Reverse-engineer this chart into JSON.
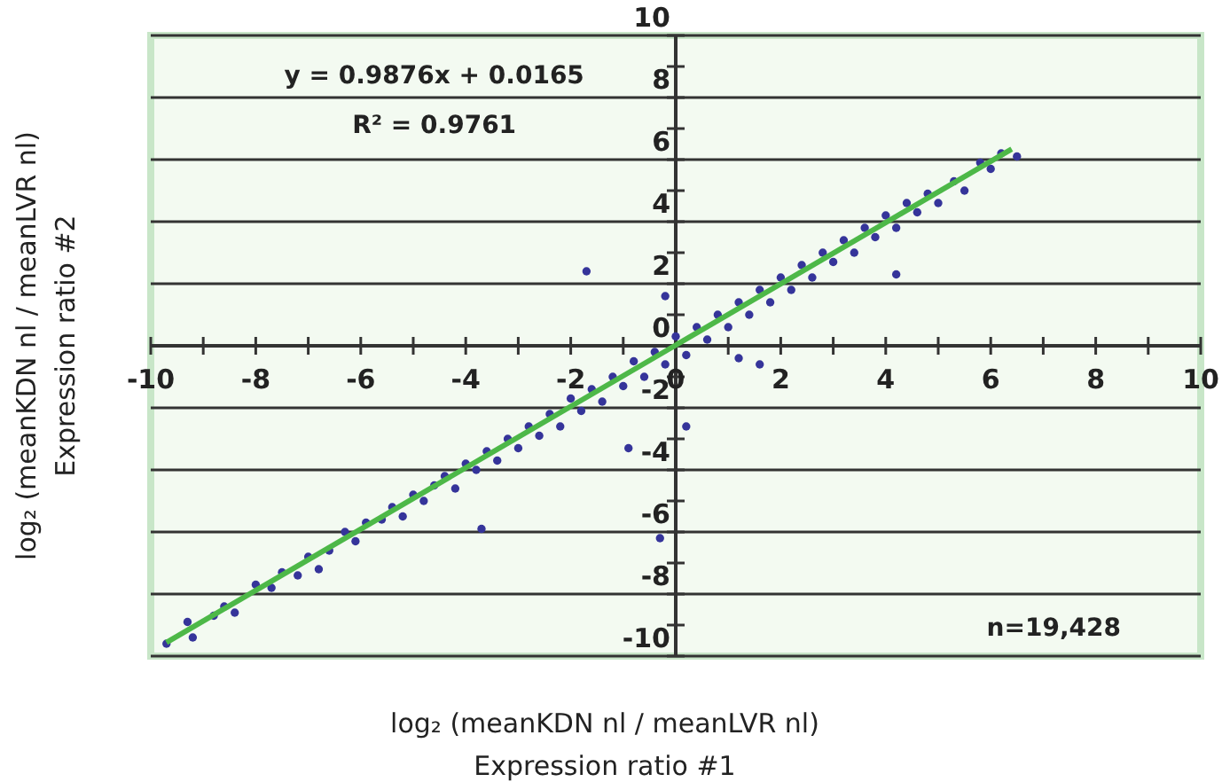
{
  "chart_data": {
    "type": "scatter",
    "xlabel": "log₂ (meanKDN nl / meanLVR nl)\nExpression ratio #1",
    "ylabel": "log₂ (meanKDN nl / meanLVR nl)\nExpression ratio #2",
    "annotations": [
      "y = 0.9876x + 0.0165",
      "R² = 0.9761",
      "n=19,428"
    ],
    "xlim": [
      -10,
      10
    ],
    "ylim": [
      -10,
      10
    ],
    "xticks": [
      -10,
      {
        "value": -9,
        "label": null
      },
      -8,
      {
        "value": -7,
        "label": null
      },
      -6,
      {
        "value": -5,
        "label": null
      },
      -4,
      {
        "value": -3,
        "label": null
      },
      -2,
      {
        "value": -1,
        "label": null
      },
      0,
      {
        "value": 1,
        "label": null
      },
      2,
      {
        "value": 3,
        "label": null
      },
      4,
      {
        "value": 5,
        "label": null
      },
      6,
      {
        "value": 7,
        "label": null
      },
      8,
      {
        "value": 9,
        "label": null
      },
      10
    ],
    "yticks": [
      -10,
      {
        "value": -9,
        "label": null
      },
      -8,
      {
        "value": -7,
        "label": null
      },
      -6,
      {
        "value": -5,
        "label": null
      },
      -4,
      {
        "value": -3,
        "label": null
      },
      -2,
      {
        "value": -1,
        "label": null
      },
      0,
      {
        "value": 1,
        "label": null
      },
      2,
      {
        "value": 3,
        "label": null
      },
      4,
      {
        "value": 5,
        "label": null
      },
      6,
      {
        "value": 7,
        "label": null
      },
      8,
      {
        "value": 9,
        "label": null
      },
      10
    ],
    "grid": "y",
    "series": [
      {
        "type": "scatter",
        "marker": "circle",
        "color": "#35349a",
        "x": [
          -9.7,
          -9.3,
          -9.2,
          -8.8,
          -8.6,
          -8.4,
          -8.0,
          -7.7,
          -7.5,
          -7.2,
          -7.0,
          -6.8,
          -6.6,
          -6.3,
          -6.1,
          -5.9,
          -5.6,
          -5.4,
          -5.2,
          -5.0,
          -4.8,
          -4.6,
          -4.4,
          -4.2,
          -4.0,
          -3.8,
          -3.6,
          -3.4,
          -3.2,
          -3.0,
          -2.8,
          -2.6,
          -2.4,
          -2.2,
          -2.0,
          -1.8,
          -1.6,
          -1.4,
          -1.2,
          -1.0,
          -0.8,
          -0.6,
          -0.4,
          -0.2,
          0.0,
          0.2,
          0.4,
          0.6,
          0.8,
          1.0,
          1.2,
          1.4,
          1.6,
          1.8,
          2.0,
          2.2,
          2.4,
          2.6,
          2.8,
          3.0,
          3.2,
          3.4,
          3.6,
          3.8,
          4.0,
          4.2,
          4.4,
          4.6,
          4.8,
          5.0,
          5.3,
          5.5,
          5.8,
          6.0,
          6.2,
          6.5,
          -1.7,
          -0.2,
          4.2,
          -3.7,
          -0.3,
          -0.9,
          1.6,
          1.2,
          0.2
        ],
        "values": [
          -9.6,
          -8.9,
          -9.4,
          -8.7,
          -8.4,
          -8.6,
          -7.7,
          -7.8,
          -7.3,
          -7.4,
          -6.8,
          -7.2,
          -6.6,
          -6.0,
          -6.3,
          -5.7,
          -5.6,
          -5.2,
          -5.5,
          -4.8,
          -5.0,
          -4.5,
          -4.2,
          -4.6,
          -3.8,
          -4.0,
          -3.4,
          -3.7,
          -3.0,
          -3.3,
          -2.6,
          -2.9,
          -2.2,
          -2.6,
          -1.7,
          -2.1,
          -1.4,
          -1.8,
          -1.0,
          -1.3,
          -0.5,
          -1.0,
          -0.2,
          -0.6,
          0.3,
          -0.3,
          0.6,
          0.2,
          1.0,
          0.6,
          1.4,
          1.0,
          1.8,
          1.4,
          2.2,
          1.8,
          2.6,
          2.2,
          3.0,
          2.7,
          3.4,
          3.0,
          3.8,
          3.5,
          4.2,
          3.8,
          4.6,
          4.3,
          4.9,
          4.6,
          5.3,
          5.0,
          5.9,
          5.7,
          6.2,
          6.1,
          2.4,
          1.6,
          2.3,
          -5.9,
          -6.2,
          -3.3,
          -0.6,
          -0.4,
          -2.6
        ]
      },
      {
        "type": "line",
        "marker": "none",
        "line_style": "solid",
        "color": "#4db848",
        "x": [
          -9.7,
          6.4
        ],
        "values": [
          -9.56,
          6.34
        ]
      }
    ]
  }
}
